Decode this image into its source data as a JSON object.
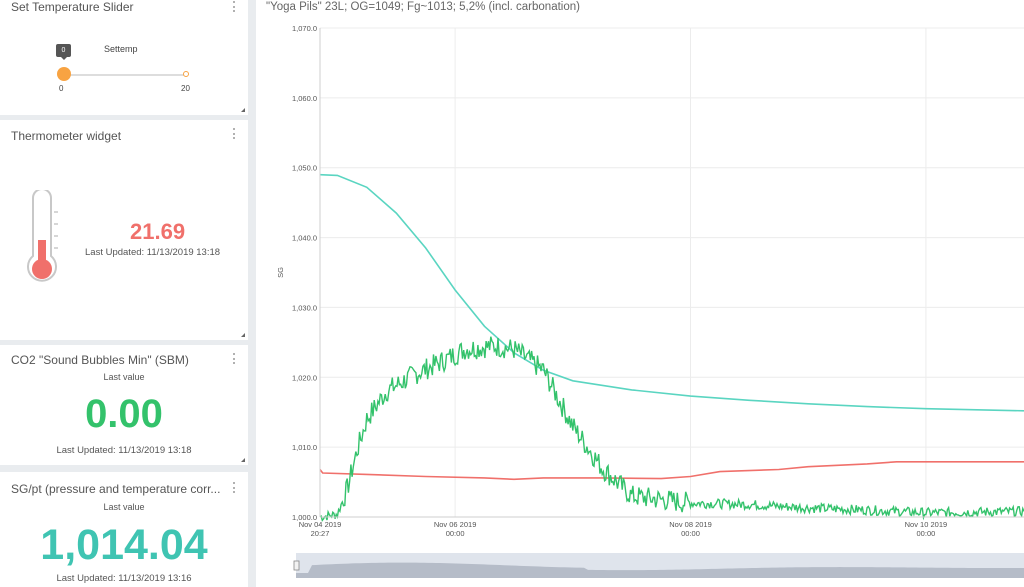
{
  "slider_widget": {
    "title": "Set Temperature Slider",
    "label": "Settemp",
    "value": "0",
    "min": "0",
    "max": "20",
    "accent": "#f8a342"
  },
  "thermo_widget": {
    "title": "Thermometer widget",
    "value": "21.69",
    "updated": "Last Updated: 11/13/2019 13:18",
    "color": "#f0706b"
  },
  "co2_widget": {
    "title": "CO2 \"Sound Bubbles Min\" (SBM)",
    "caption": "Last value",
    "value": "0.00",
    "updated": "Last Updated: 11/13/2019 13:18",
    "color": "#33c26b"
  },
  "sg_widget": {
    "title": "SG/pt (pressure and temperature corr...",
    "caption": "Last value",
    "value": "1,014.04",
    "updated": "Last Updated: 11/13/2019 13:16",
    "color": "#3fc4b2"
  },
  "chart_panel": {
    "title": "\"Yoga Pils\" 23L; OG=1049; Fg~1013; 5,2% (incl. carbonation)"
  },
  "chart_data": {
    "type": "line",
    "ylabel": "SG",
    "ylim": [
      1000,
      1070
    ],
    "yticks": [
      "1,070.0",
      "1,060.0",
      "1,050.0",
      "1,040.0",
      "1,030.0",
      "1,020.0",
      "1,010.0",
      "1,000.0"
    ],
    "xlim": [
      "2019-11-04 20:27",
      "2019-11-10 20:00"
    ],
    "xticks": [
      {
        "date": "Nov 04 2019",
        "time": "20:27"
      },
      {
        "date": "Nov 06 2019",
        "time": "00:00"
      },
      {
        "date": "Nov 08 2019",
        "time": "00:00"
      },
      {
        "date": "Nov 10 2019",
        "time": "00:00"
      }
    ],
    "grid": true,
    "series": [
      {
        "color": "#5ad5c1",
        "x": [
          "2019-11-04 20:27",
          "2019-11-05 00:00",
          "2019-11-05 06:00",
          "2019-11-05 12:00",
          "2019-11-05 18:00",
          "2019-11-06 00:00",
          "2019-11-06 06:00",
          "2019-11-06 12:00",
          "2019-11-06 18:00",
          "2019-11-07 00:00",
          "2019-11-07 12:00",
          "2019-11-08 00:00",
          "2019-11-08 12:00",
          "2019-11-09 00:00",
          "2019-11-09 12:00",
          "2019-11-10 00:00",
          "2019-11-10 20:00"
        ],
        "y": [
          1049,
          1048.9,
          1047.2,
          1043.5,
          1038.5,
          1032.5,
          1027.3,
          1023.5,
          1021,
          1019.5,
          1018.2,
          1017.3,
          1016.7,
          1016.2,
          1015.8,
          1015.5,
          1015.2
        ]
      },
      {
        "color": "#f0706b",
        "x": [
          "2019-11-04 20:27",
          "2019-11-04 21:00",
          "2019-11-05 06:00",
          "2019-11-05 18:00",
          "2019-11-06 06:00",
          "2019-11-06 12:00",
          "2019-11-06 18:00",
          "2019-11-07 06:00",
          "2019-11-07 18:00",
          "2019-11-08 00:00",
          "2019-11-08 06:00",
          "2019-11-08 18:00",
          "2019-11-09 00:00",
          "2019-11-09 12:00",
          "2019-11-09 18:00",
          "2019-11-10 00:00",
          "2019-11-10 20:00"
        ],
        "y": [
          1006.8,
          1006.3,
          1006.1,
          1005.8,
          1005.6,
          1005.4,
          1005.6,
          1005.6,
          1005.5,
          1005.8,
          1006.5,
          1006.8,
          1007.2,
          1007.6,
          1007.9,
          1007.9,
          1007.9
        ]
      },
      {
        "color": "#33c26b",
        "x": [
          "2019-11-04 20:27",
          "2019-11-05 00:00",
          "2019-11-05 02:00",
          "2019-11-05 04:00",
          "2019-11-05 06:00",
          "2019-11-05 10:00",
          "2019-11-05 16:00",
          "2019-11-05 22:00",
          "2019-11-06 02:00",
          "2019-11-06 08:00",
          "2019-11-06 12:00",
          "2019-11-06 18:00",
          "2019-11-07 00:00",
          "2019-11-07 06:00",
          "2019-11-07 12:00",
          "2019-11-08 00:00",
          "2019-11-08 12:00",
          "2019-11-09 00:00",
          "2019-11-09 12:00",
          "2019-11-10 00:00",
          "2019-11-10 20:00"
        ],
        "y": [
          1000,
          1000.4,
          1004,
          1009.5,
          1014,
          1018,
          1020.5,
          1022.5,
          1024,
          1024.5,
          1024,
          1021,
          1013,
          1007,
          1003,
          1002,
          1001.8,
          1001.3,
          1001,
          1000.6,
          1000.8
        ]
      }
    ]
  }
}
